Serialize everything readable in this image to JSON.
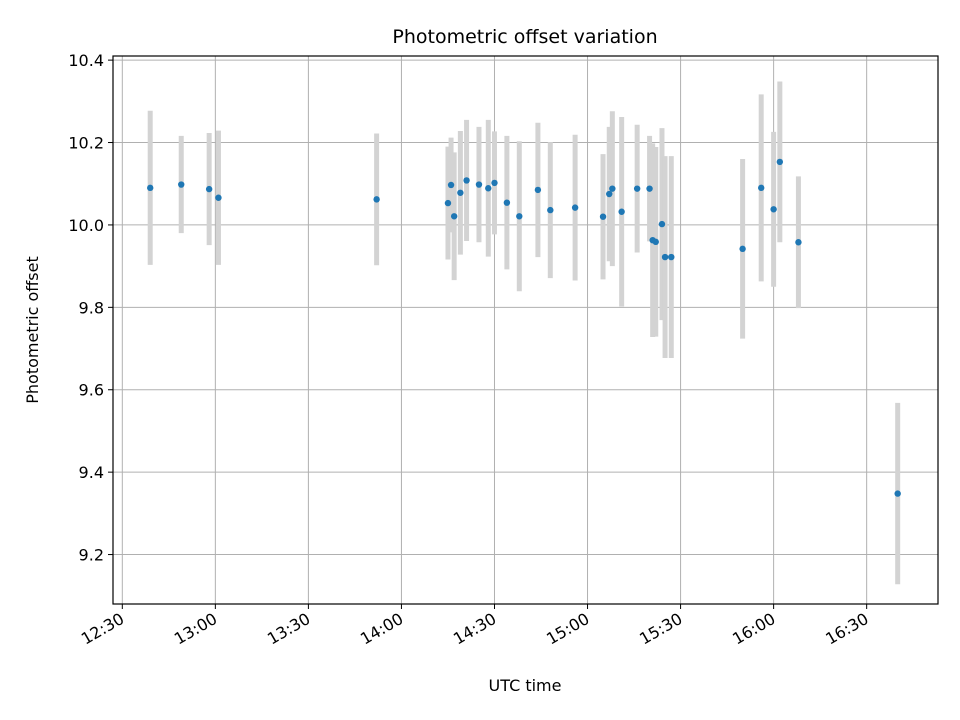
{
  "chart_data": {
    "type": "scatter",
    "title": "Photometric offset variation",
    "xlabel": "UTC time",
    "ylabel": "Photometric offset",
    "x_ticks": [
      "12:30",
      "13:00",
      "13:30",
      "14:00",
      "14:30",
      "15:00",
      "15:30",
      "16:00",
      "16:30"
    ],
    "y_ticks": [
      "9.2",
      "9.4",
      "9.6",
      "9.8",
      "10.0",
      "10.2",
      "10.4"
    ],
    "xlim": [
      "12:27",
      "16:53"
    ],
    "ylim": [
      9.08,
      10.41
    ],
    "grid": true,
    "point_color": "#1f77b4",
    "errorbar_color": "#d3d3d3",
    "series": [
      {
        "x": [
          "12:39",
          "12:49",
          "12:58",
          "13:01",
          "13:52",
          "14:15",
          "14:16",
          "14:17",
          "14:19",
          "14:21",
          "14:25",
          "14:28",
          "14:30",
          "14:34",
          "14:38",
          "14:44",
          "14:48",
          "14:56",
          "15:05",
          "15:07",
          "15:08",
          "15:11",
          "15:16",
          "15:20",
          "15:21",
          "15:22",
          "15:24",
          "15:25",
          "15:27",
          "15:50",
          "15:56",
          "16:00",
          "16:02",
          "16:08",
          "16:40"
        ],
        "y": [
          10.09,
          10.098,
          10.087,
          10.066,
          10.062,
          10.053,
          10.097,
          10.021,
          10.078,
          10.108,
          10.098,
          10.089,
          10.102,
          10.054,
          10.021,
          10.085,
          10.036,
          10.042,
          10.02,
          10.075,
          10.088,
          10.032,
          10.088,
          10.088,
          9.963,
          9.959,
          10.002,
          9.922,
          9.922,
          9.942,
          10.09,
          10.038,
          10.153,
          9.958,
          9.348
        ],
        "err": [
          0.187,
          0.118,
          0.136,
          0.163,
          0.16,
          0.137,
          0.115,
          0.155,
          0.15,
          0.147,
          0.14,
          0.166,
          0.125,
          0.162,
          0.182,
          0.163,
          0.165,
          0.177,
          0.152,
          0.163,
          0.188,
          0.23,
          0.155,
          0.128,
          0.235,
          0.23,
          0.233,
          0.245,
          0.245,
          0.218,
          0.227,
          0.188,
          0.195,
          0.16,
          0.22
        ]
      }
    ]
  }
}
